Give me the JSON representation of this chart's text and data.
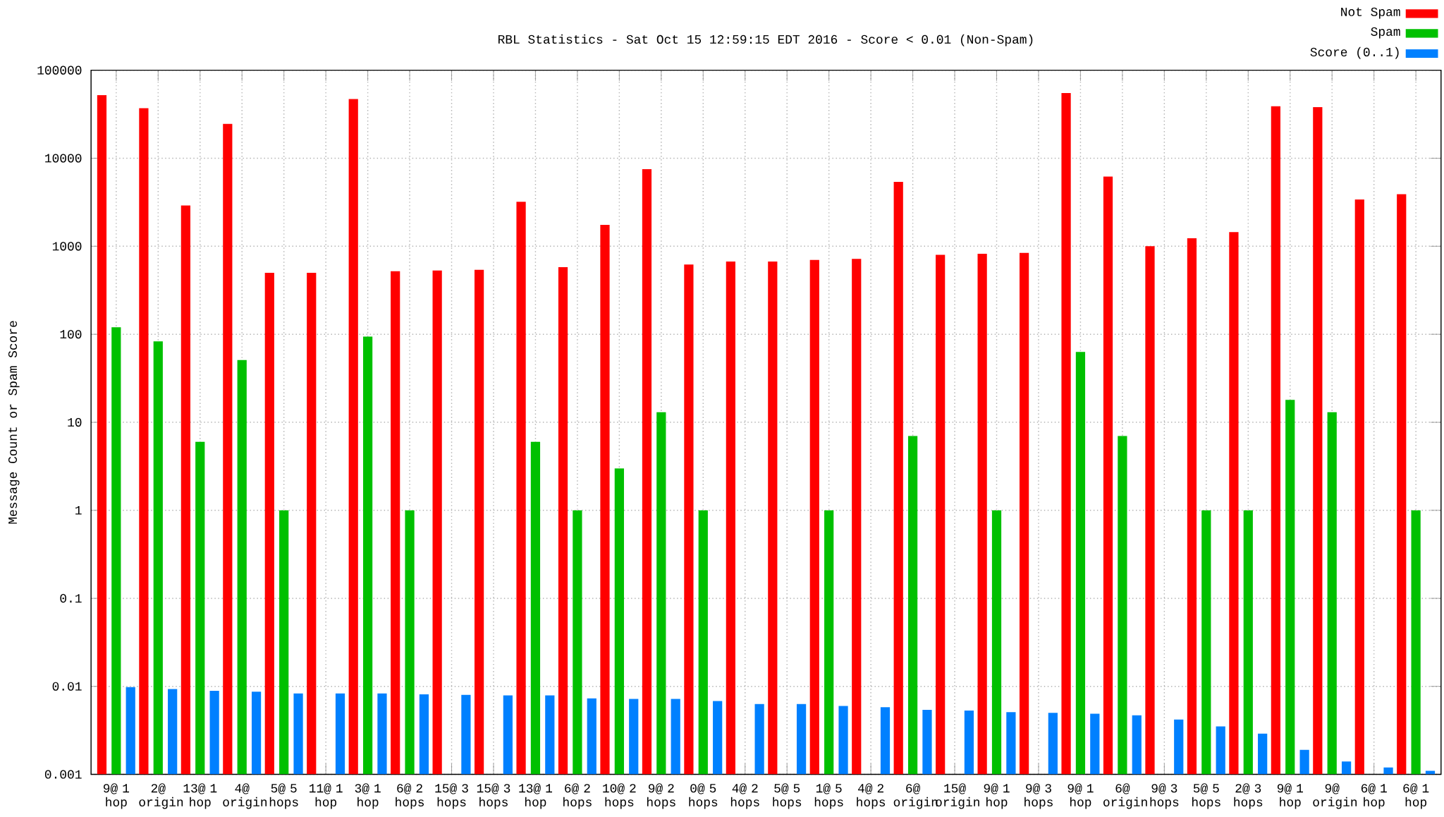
{
  "chart_data": {
    "type": "bar",
    "title": "RBL Statistics - Sat Oct 15 12:59:15 EDT 2016 - Score < 0.01 (Non-Spam)",
    "ylabel": "Message Count or Spam Score",
    "categories": [
      "9@ 1 hop",
      "2@ origin",
      "13@ 1 hop",
      "4@ origin",
      "5@ 5 hops",
      "11@ 1 hop",
      "3@ 1 hop",
      "6@ 2 hops",
      "15@ 3 hops",
      "15@ 3 hops",
      "13@ 1 hop",
      "6@ 2 hops",
      "10@ 2 hops",
      "9@ 2 hops",
      "0@ 5 hops",
      "4@ 2 hops",
      "5@ 5 hops",
      "1@ 5 hops",
      "4@ 2 hops",
      "6@ origin",
      "15@ origin",
      "9@ 1 hop",
      "9@ 3 hops",
      "9@ 1 hop",
      "6@ origin",
      "9@ 3 hops",
      "5@ 5 hops",
      "2@ 3 hops",
      "9@ 1 hop",
      "9@ origin",
      "6@ 1 hop",
      "6@ 1 hop"
    ],
    "series": [
      {
        "name": "Not Spam",
        "color": "#ff0000",
        "values": [
          52000,
          37000,
          2900,
          24500,
          500,
          500,
          47000,
          520,
          530,
          540,
          3200,
          580,
          1750,
          7500,
          620,
          670,
          670,
          700,
          720,
          5400,
          800,
          820,
          840,
          55000,
          6200,
          1000,
          1230,
          1450,
          39000,
          38000,
          3400,
          3900
        ]
      },
      {
        "name": "Spam",
        "color": "#00c000",
        "values": [
          120,
          83,
          6,
          51,
          1,
          null,
          94,
          1,
          null,
          null,
          6,
          1,
          3,
          13,
          1,
          null,
          null,
          1,
          null,
          7,
          null,
          1,
          null,
          63,
          7,
          null,
          1,
          1,
          18,
          13,
          null,
          1
        ]
      },
      {
        "name": "Score (0..1)",
        "color": "#0080ff",
        "values": [
          0.0098,
          0.0093,
          0.0089,
          0.0087,
          0.0083,
          0.0083,
          0.0083,
          0.0081,
          0.008,
          0.0079,
          0.0079,
          0.0073,
          0.0072,
          0.0072,
          0.0068,
          0.0063,
          0.0063,
          0.006,
          0.0058,
          0.0054,
          0.0053,
          0.0051,
          0.005,
          0.0049,
          0.0047,
          0.0042,
          0.0035,
          0.0029,
          0.0019,
          0.0014,
          0.0012,
          0.0011
        ]
      }
    ],
    "log": "y",
    "ylim": [
      0.001,
      100000
    ],
    "yticks": [
      0.001,
      0.01,
      0.1,
      1,
      10,
      100,
      1000,
      10000,
      100000
    ],
    "grid": true,
    "legend": "top right"
  }
}
